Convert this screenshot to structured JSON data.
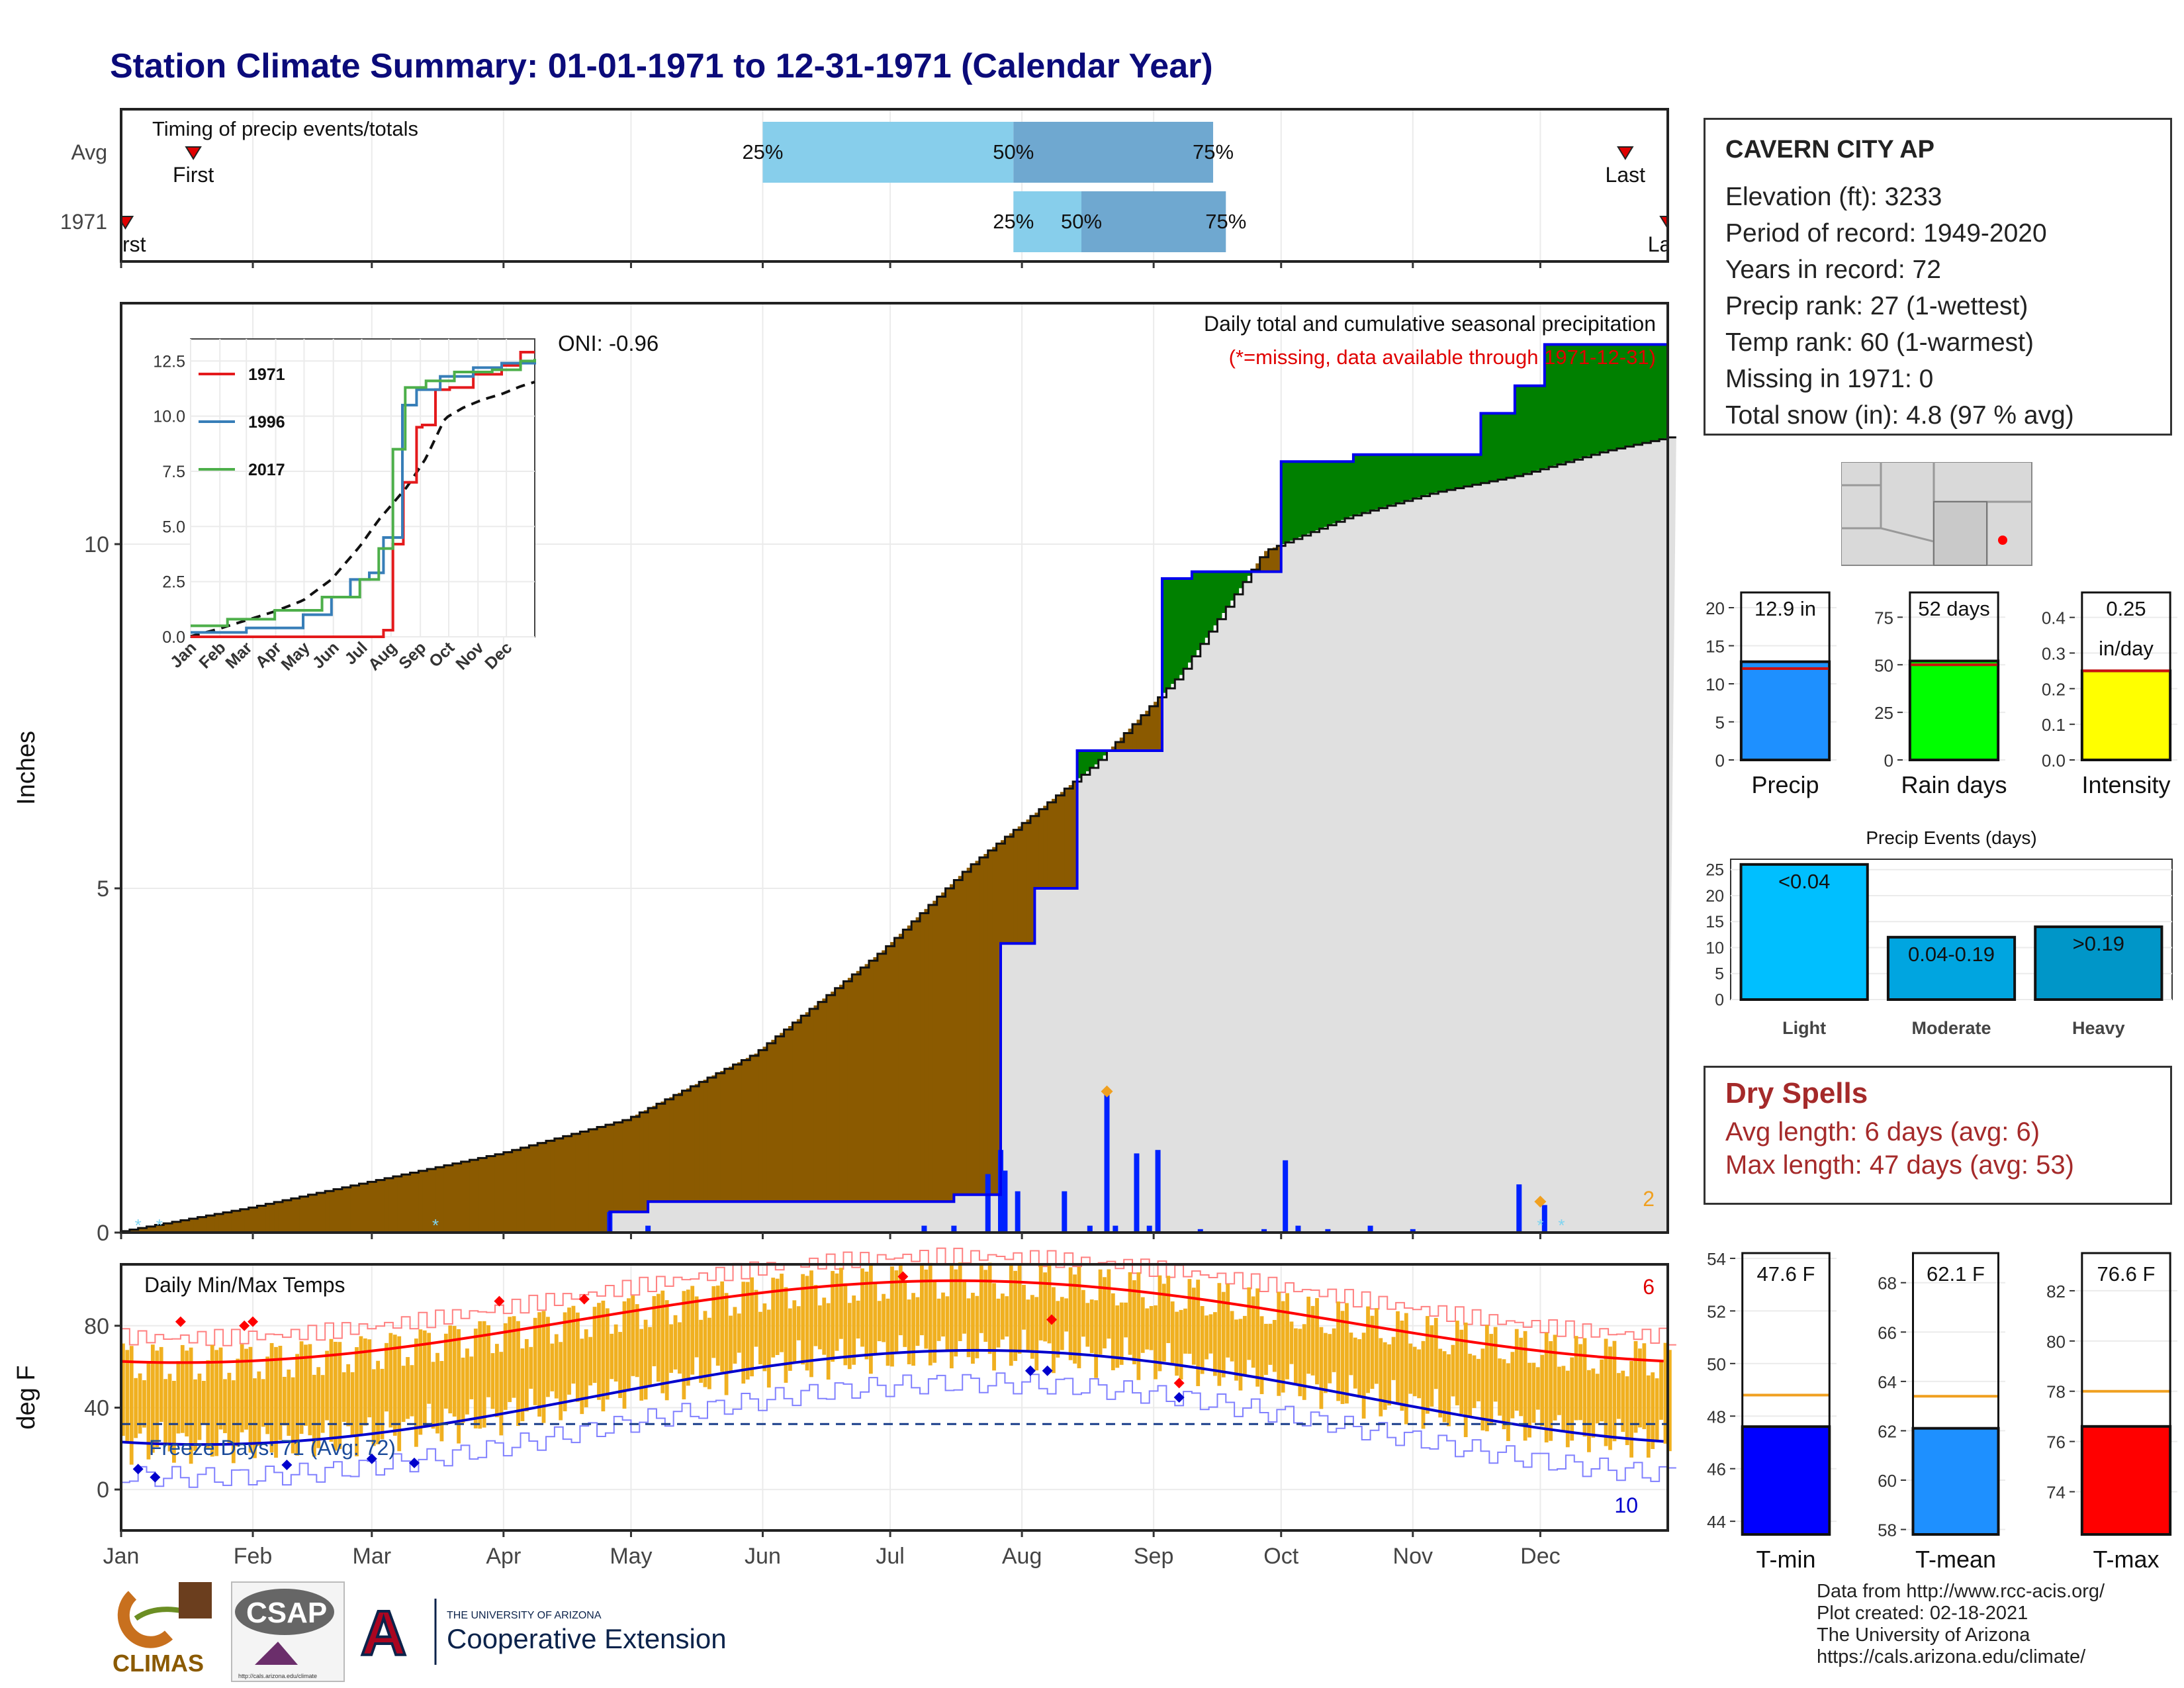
{
  "title": "Station Climate Summary: 01-01-1971 to 12-31-1971 (Calendar Year)",
  "months": [
    "Jan",
    "Feb",
    "Mar",
    "Apr",
    "May",
    "Jun",
    "Jul",
    "Aug",
    "Sep",
    "Oct",
    "Nov",
    "Dec"
  ],
  "station": {
    "name": "CAVERN CITY AP",
    "lines": [
      "Elevation (ft): 3233",
      "Period of record: 1949-2020",
      "Years in record: 72",
      "Precip rank: 27 (1-wettest)",
      "Temp rank: 60 (1-warmest)",
      "Missing in 1971: 0",
      "Total snow (in): 4.8 (97 % avg)"
    ]
  },
  "dry_spells": {
    "title": "Dry Spells",
    "avg": "Avg length: 6 days (avg: 6)",
    "max": "Max length: 47 days (avg: 53)"
  },
  "footer": [
    "Data from http://www.rcc-acis.org/",
    "Plot created: 02-18-2021",
    "The University of Arizona",
    "https://cals.arizona.edu/climate/"
  ],
  "logos": {
    "climas": "CLIMAS",
    "csap": "CSAP",
    "csap_url": "http://cals.arizona.edu/climate",
    "ua_small": "THE UNIVERSITY OF ARIZONA",
    "ua_big": "Cooperative Extension"
  },
  "colors": {
    "precip_above": "#008000",
    "precip_below": "#8b5a00",
    "normal_area": "#e0e0e0",
    "daily_bar": "#0022ff",
    "temp_bar": "#f0b020",
    "tmax_line": "#ff0000",
    "tmin_line": "#0000cc"
  },
  "chart_data": [
    {
      "type": "bar",
      "title": "Timing of precip events/totals",
      "categories": [
        "Avg",
        "1971"
      ],
      "series": [
        {
          "name": "Avg",
          "first": "Jan 18",
          "last": "Dec 21",
          "q25": "Jun 1",
          "q50": "Jul 30",
          "q75": "Sep 15"
        },
        {
          "name": "1971",
          "first": "Jan 2",
          "last": "Dec 31",
          "q25": "Jul 30",
          "q50": "Aug 15",
          "q75": "Sep 18"
        }
      ],
      "labels": {
        "first": "First",
        "last": "Last",
        "q25": "25%",
        "q50": "50%",
        "q75": "75%"
      }
    },
    {
      "type": "area",
      "title": "Daily total and cumulative seasonal precipitation",
      "subtitle": "(*=missing, data available through 1971-12-31)",
      "ylabel": "Inches",
      "ylim": [
        0,
        13.5
      ],
      "yticks": [
        0,
        5,
        10
      ],
      "oni": "ONI: -0.96",
      "corner_note": "2",
      "normal_cumulative": {
        "doy": [
          1,
          30,
          60,
          90,
          120,
          150,
          180,
          200,
          210,
          230,
          250,
          270,
          290,
          310,
          330,
          350,
          365
        ],
        "values": [
          0.02,
          0.35,
          0.75,
          1.15,
          1.65,
          2.6,
          4.1,
          5.3,
          5.8,
          6.8,
          8.1,
          9.9,
          10.4,
          10.75,
          11.0,
          11.35,
          11.55
        ]
      },
      "observed_cumulative": {
        "doy": [
          1,
          115,
          116,
          124,
          125,
          196,
          197,
          207,
          208,
          215,
          216,
          225,
          226,
          245,
          246,
          252,
          253,
          273,
          274,
          290,
          291,
          320,
          321,
          328,
          329,
          335,
          336,
          365
        ],
        "values": [
          0.0,
          0.0,
          0.3,
          0.3,
          0.45,
          0.45,
          0.55,
          0.55,
          4.2,
          4.2,
          5.0,
          5.0,
          7.0,
          7.0,
          9.5,
          9.5,
          9.6,
          9.6,
          11.2,
          11.2,
          11.3,
          11.3,
          11.9,
          11.9,
          12.3,
          12.3,
          12.9,
          12.9
        ]
      },
      "daily_bars": {
        "doy": [
          116,
          125,
          190,
          197,
          205,
          208,
          209,
          212,
          223,
          229,
          233,
          235,
          240,
          243,
          245,
          255,
          270,
          275,
          278,
          285,
          295,
          305,
          330,
          336
        ],
        "values": [
          0.3,
          0.1,
          0.1,
          0.1,
          0.85,
          1.2,
          0.9,
          0.6,
          0.6,
          0.1,
          2.05,
          0.1,
          1.15,
          0.1,
          1.2,
          0.05,
          0.05,
          1.05,
          0.1,
          0.05,
          0.1,
          0.05,
          0.7,
          0.4
        ]
      },
      "markers": {
        "doy": [
          233,
          335
        ],
        "values": [
          2.05,
          0.45
        ]
      },
      "inset": {
        "yticks": [
          0.0,
          2.5,
          5.0,
          7.5,
          10.0,
          12.5
        ],
        "series": [
          {
            "name": "1971",
            "color": "#e41a1c"
          },
          {
            "name": "1996",
            "color": "#377eb8"
          },
          {
            "name": "2017",
            "color": "#4daf4a"
          }
        ]
      }
    },
    {
      "type": "bar",
      "title": "Daily Min/Max Temps",
      "ylabel": "deg F",
      "ylim": [
        -20,
        110
      ],
      "yticks": [
        0,
        40,
        80
      ],
      "freeze_text": "Freeze Days: 71 (Avg: 72)",
      "freeze_line": 32,
      "note_top": "6",
      "note_bottom": "10"
    },
    {
      "type": "bar",
      "categories": [
        "Precip",
        "Rain days",
        "Intensity"
      ],
      "values": [
        12.9,
        52,
        0.25
      ],
      "averages": [
        12.0,
        50,
        0.25
      ],
      "value_labels": [
        "12.9 in",
        "52 days",
        "0.25"
      ],
      "value_labels_2": [
        "",
        "",
        "in/day"
      ],
      "panels": [
        {
          "ylim": [
            0,
            22
          ],
          "yticks": [
            0,
            5,
            10,
            15,
            20
          ],
          "color": "#1e90ff"
        },
        {
          "ylim": [
            0,
            88
          ],
          "yticks": [
            0,
            25,
            50,
            75
          ],
          "color": "#00ff00"
        },
        {
          "ylim": [
            0,
            0.47
          ],
          "yticks": [
            "0.0",
            "0.1",
            "0.2",
            "0.3",
            "0.4"
          ],
          "color": "#ffff00"
        }
      ]
    },
    {
      "type": "bar",
      "title": "Precip Events (days)",
      "categories": [
        "Light",
        "Moderate",
        "Heavy"
      ],
      "values": [
        26,
        12,
        14
      ],
      "value_labels": [
        "<0.04",
        "0.04-0.19",
        ">0.19"
      ],
      "ylim": [
        0,
        27
      ],
      "yticks": [
        0,
        5,
        10,
        15,
        20,
        25
      ],
      "colors": [
        "#00bfff",
        "#00a5e0",
        "#0096c8"
      ]
    },
    {
      "type": "bar",
      "categories": [
        "T-min",
        "T-mean",
        "T-max"
      ],
      "values": [
        47.6,
        62.1,
        76.6
      ],
      "averages": [
        48.8,
        63.4,
        78.0
      ],
      "value_labels": [
        "47.6 F",
        "62.1 F",
        "76.6 F"
      ],
      "panels": [
        {
          "ylim": [
            43.5,
            54.2
          ],
          "yticks": [
            44,
            46,
            48,
            50,
            52,
            54
          ],
          "color": "#0000ff"
        },
        {
          "ylim": [
            57.8,
            69.2
          ],
          "yticks": [
            58,
            60,
            62,
            64,
            66,
            68
          ],
          "color": "#1e90ff"
        },
        {
          "ylim": [
            72.3,
            83.5
          ],
          "yticks": [
            74,
            76,
            78,
            80,
            82
          ],
          "color": "#ff0000"
        }
      ]
    }
  ]
}
